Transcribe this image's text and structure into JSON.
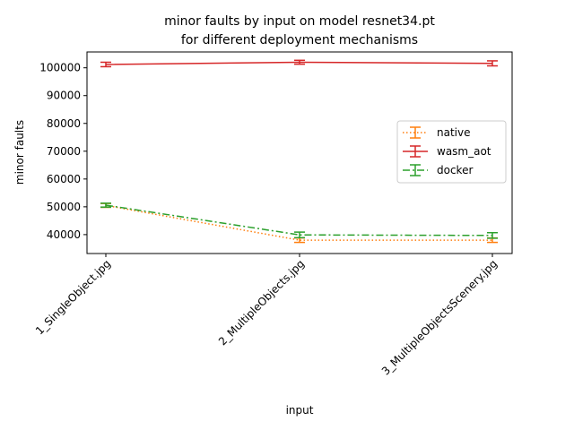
{
  "chart_data": {
    "type": "line",
    "title_lines": [
      "minor faults by input on model resnet34.pt",
      "for different deployment mechanisms"
    ],
    "xlabel": "input",
    "ylabel": "minor faults",
    "categories": [
      "1_SingleObject.jpg",
      "2_MultipleObjects.jpg",
      "3_MultipleObjectsScenery.jpg"
    ],
    "ylim": [
      33200,
      105700
    ],
    "yticks": [
      40000,
      50000,
      60000,
      70000,
      80000,
      90000,
      100000
    ],
    "ytick_labels": [
      "40000",
      "50000",
      "60000",
      "70000",
      "80000",
      "90000",
      "100000"
    ],
    "grid": false,
    "legend_position": "center-right",
    "series": [
      {
        "name": "native",
        "values": [
          50500,
          38000,
          38000
        ],
        "errors": [
          700,
          800,
          800
        ],
        "color": "#ff7f0e",
        "dash": "dotted"
      },
      {
        "name": "wasm_aot",
        "values": [
          101200,
          102000,
          101600
        ],
        "errors": [
          800,
          700,
          900
        ],
        "color": "#d62728",
        "dash": "solid"
      },
      {
        "name": "docker",
        "values": [
          50600,
          39900,
          39700
        ],
        "errors": [
          700,
          1000,
          1000
        ],
        "color": "#2ca02c",
        "dash": "dashdot"
      }
    ]
  }
}
